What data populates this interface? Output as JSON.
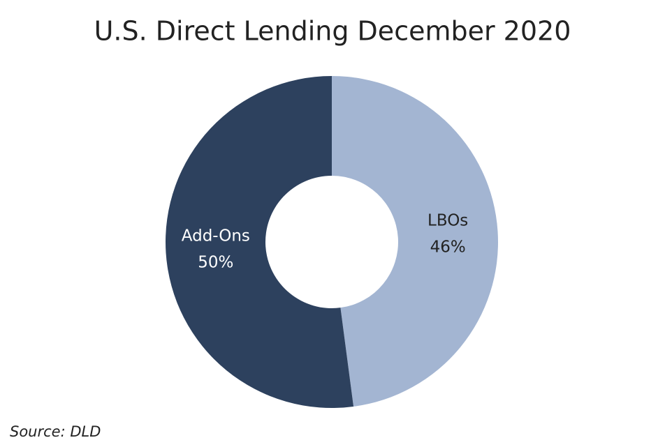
{
  "chart_data": {
    "type": "donut",
    "title": "U.S. Direct Lending December 2020",
    "categories": [
      "LBOs",
      "Add-Ons"
    ],
    "values": [
      46,
      50
    ],
    "value_labels": [
      "46%",
      "50%"
    ],
    "colors": [
      "#a3b5d2",
      "#2d415e"
    ],
    "label_colors": [
      "#222222",
      "#ffffff"
    ],
    "source": "Source: DLD"
  }
}
